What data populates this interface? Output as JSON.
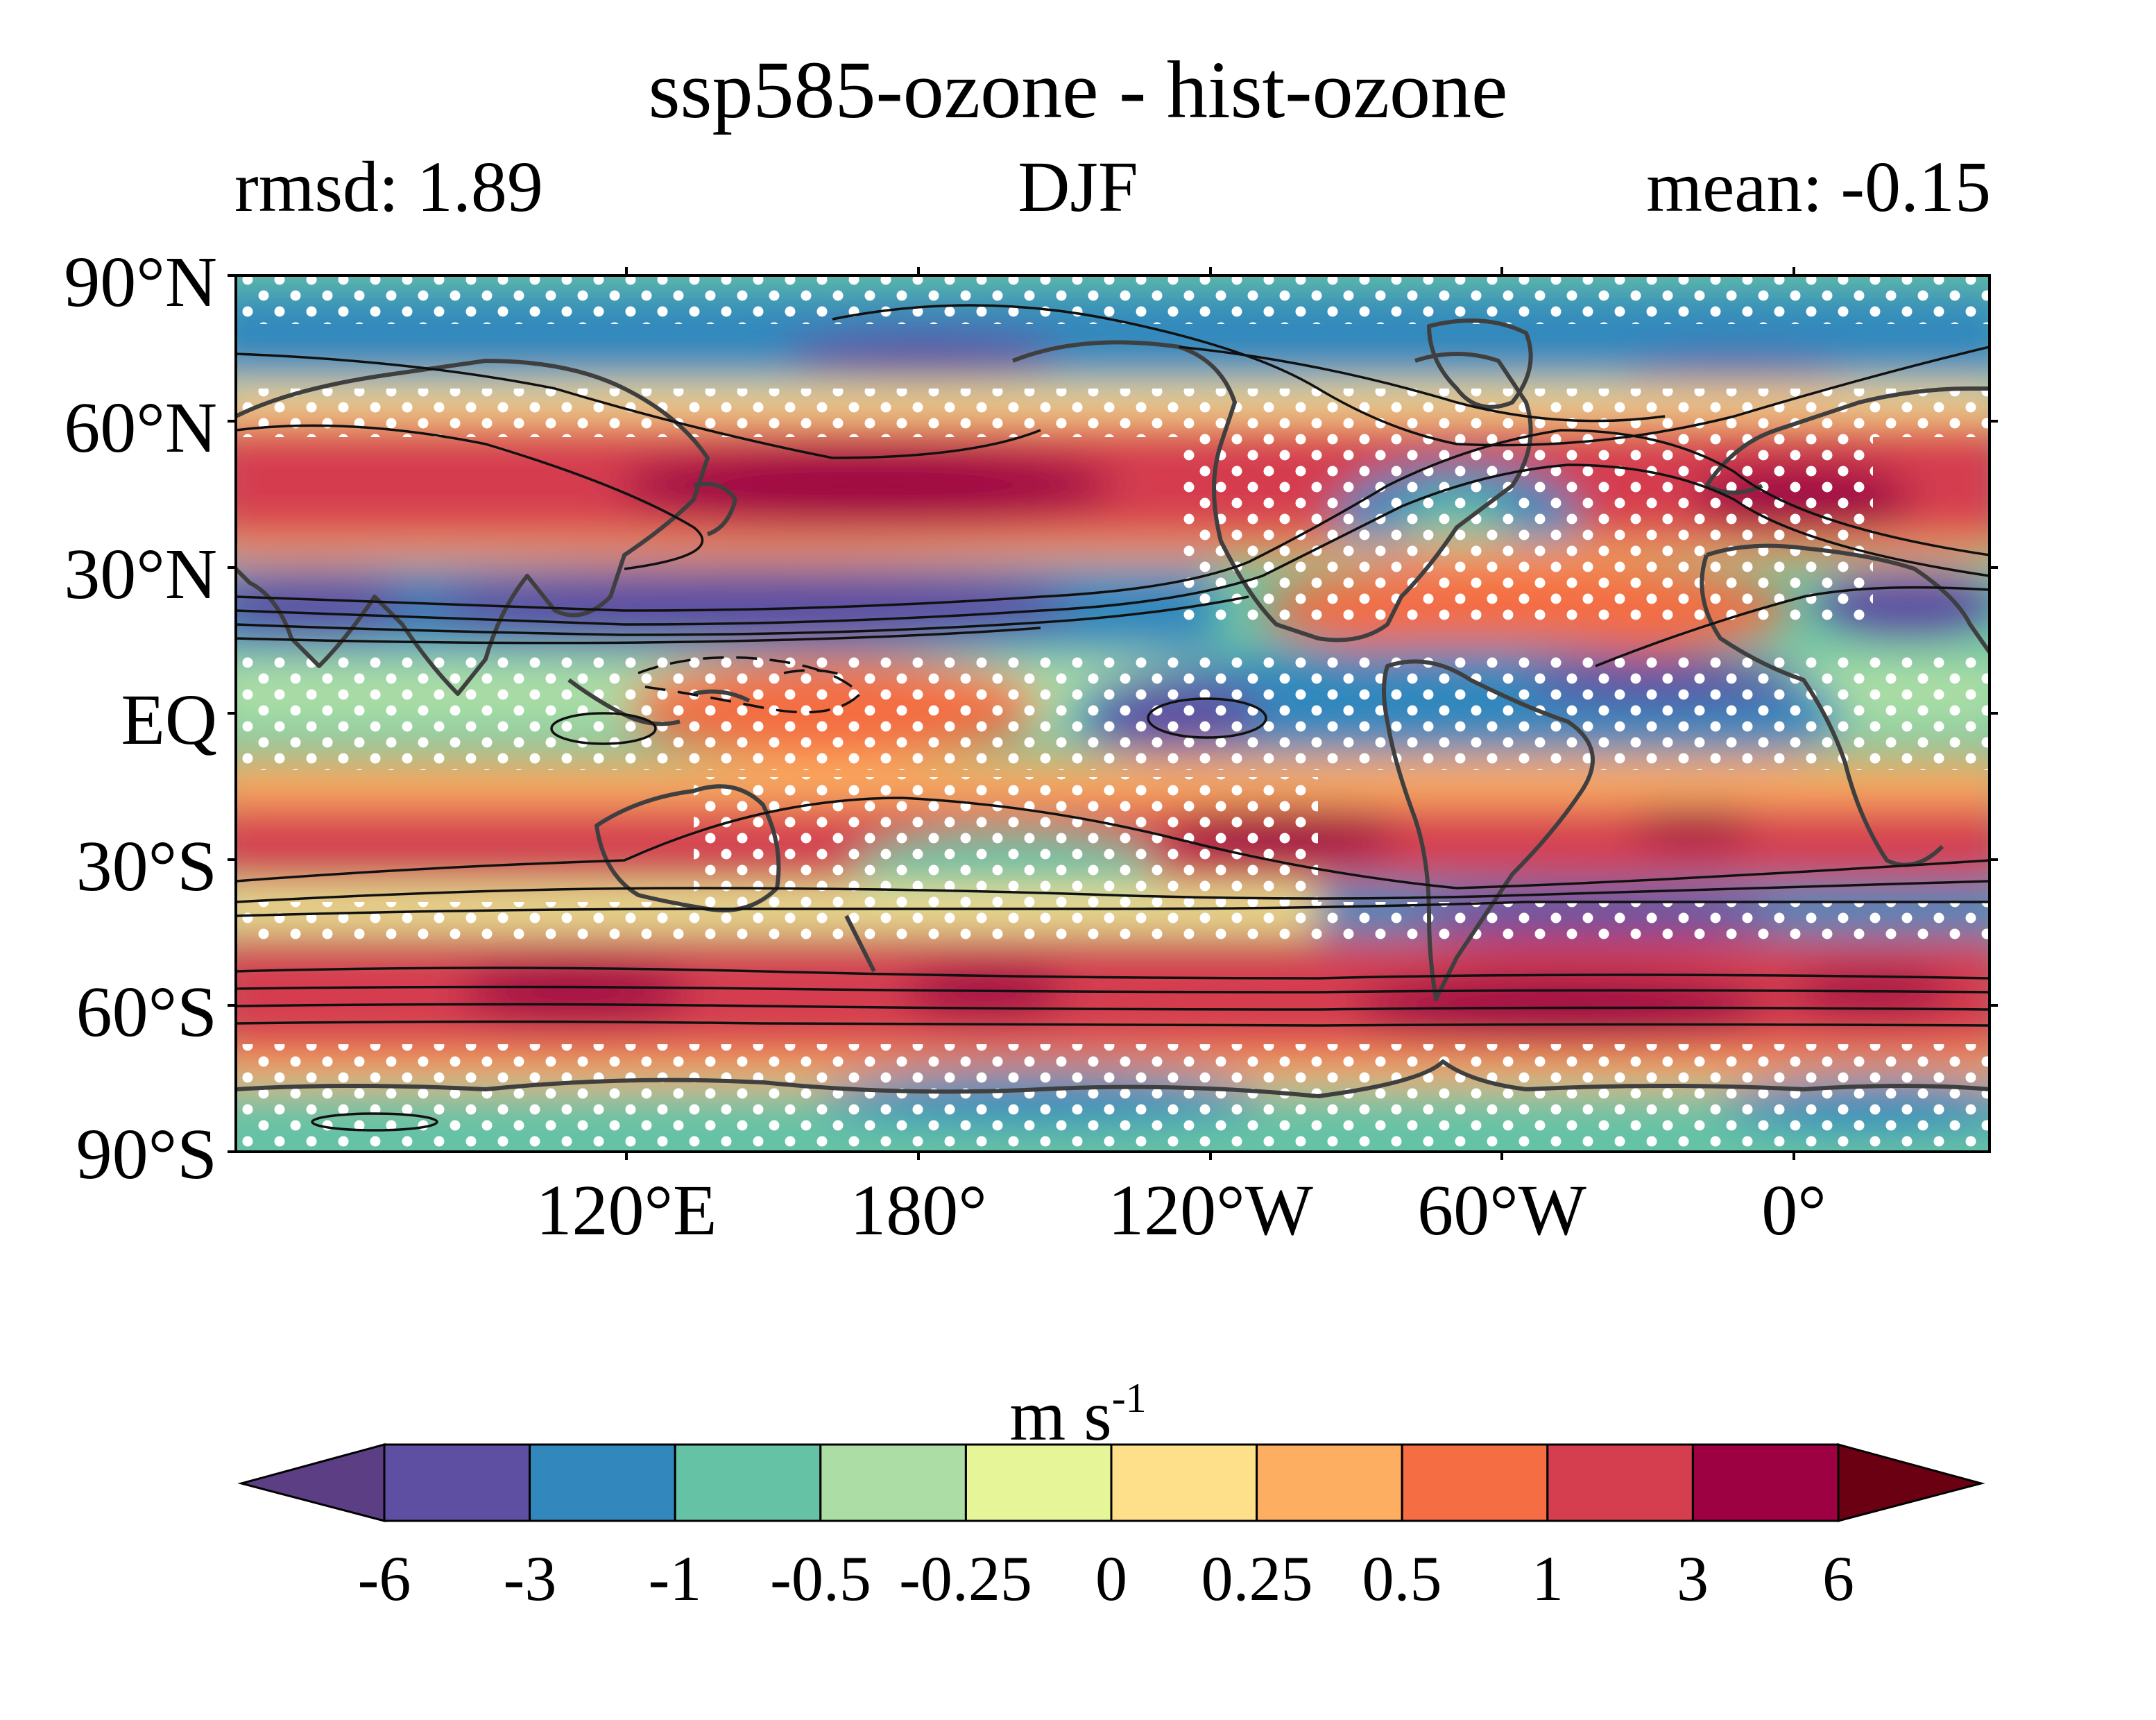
{
  "title": "ssp585-ozone - hist-ozone",
  "subtitles": {
    "left": "rmsd: 1.89",
    "center": "DJF",
    "right": "mean: -0.15"
  },
  "map": {
    "lat_ticks": [
      "90°N",
      "60°N",
      "30°N",
      "EQ",
      "30°S",
      "60°S",
      "90°S"
    ],
    "lon_ticks": [
      "120°E",
      "180°",
      "120°W",
      "60°W",
      "0°"
    ],
    "lat_range": [
      -90,
      90
    ],
    "lon_range": [
      40,
      400
    ],
    "central_longitude": 220,
    "features": [
      "filled contours of wind difference",
      "stippling for significance",
      "black climatology contours (dashed negative)",
      "grey coastlines"
    ]
  },
  "colorbar": {
    "units_main": "m s",
    "units_sup": "-1",
    "tick_labels": [
      "-6",
      "-3",
      "-1",
      "-0.5",
      "-0.25",
      "0",
      "0.25",
      "0.5",
      "1",
      "3",
      "6"
    ],
    "levels": [
      -6,
      -3,
      -1,
      -0.5,
      -0.25,
      0,
      0.25,
      0.5,
      1,
      3,
      6
    ],
    "colors": [
      "#5e4fa2",
      "#3288bd",
      "#66c2a5",
      "#abdda4",
      "#e6f598",
      "#fee08b",
      "#fdae61",
      "#f46d43",
      "#d53e4f",
      "#9e0142"
    ],
    "under_color": "#5c3e84",
    "over_color": "#6a0011",
    "extend": "both"
  }
}
